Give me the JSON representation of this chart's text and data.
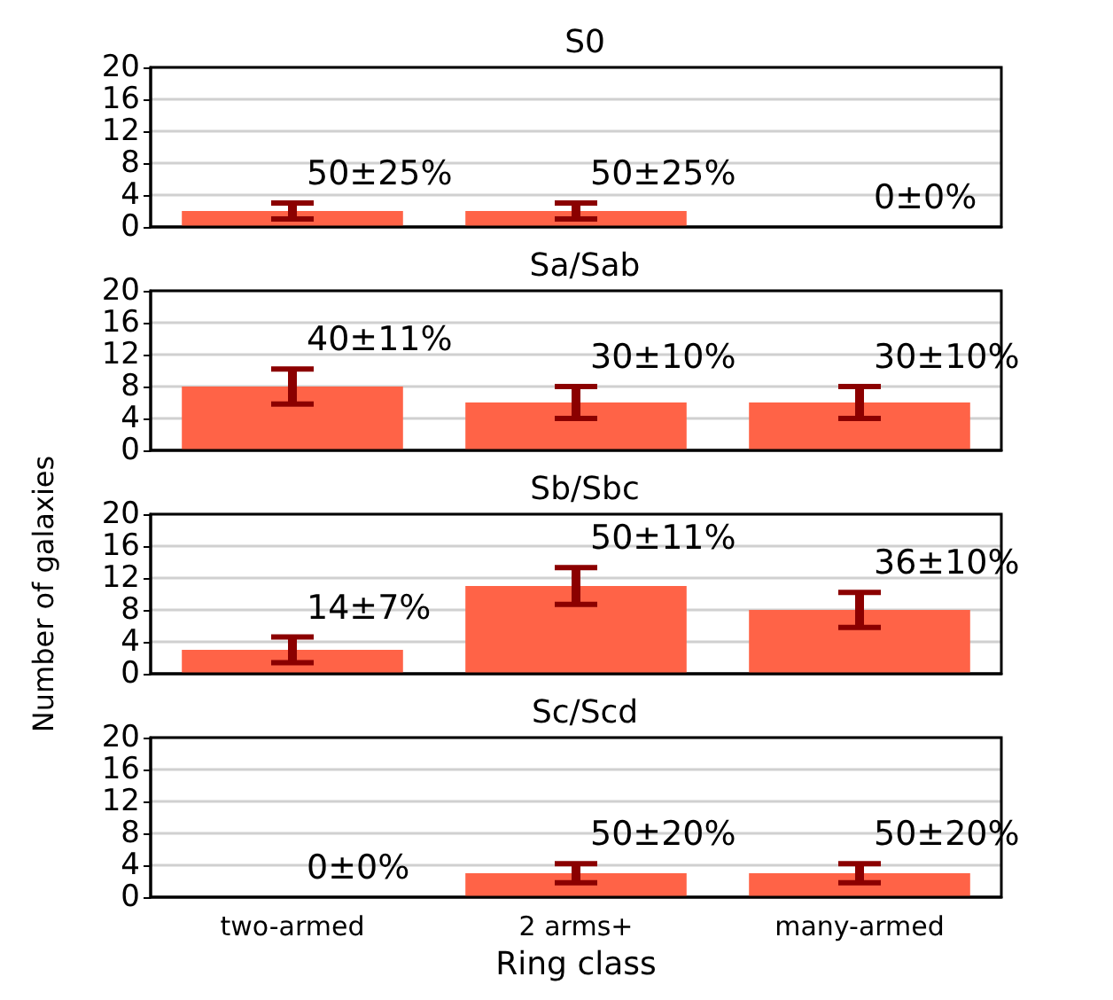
{
  "chart_data": [
    {
      "type": "bar",
      "title": "S0",
      "categories": [
        "two-armed",
        "2 arms+",
        "many-armed"
      ],
      "values": [
        2,
        2,
        0
      ],
      "errors": [
        1,
        1,
        0
      ],
      "color": "#ff6347",
      "ylim": [
        0,
        20
      ],
      "yticks": [
        0,
        4,
        8,
        12,
        16,
        20
      ],
      "grid": "y",
      "tick_labels": "y",
      "annotations": [
        {
          "text": "50±25%",
          "x": "two-armed",
          "y": 2
        },
        {
          "text": "50±25%",
          "x": "2 arms+",
          "y": 2
        },
        {
          "text": "0±0%",
          "x": "many-armed",
          "y": 0
        }
      ]
    },
    {
      "type": "bar",
      "title": "Sa/Sab",
      "categories": [
        "two-armed",
        "2 arms+",
        "many-armed"
      ],
      "values": [
        8,
        6,
        6
      ],
      "errors": [
        2.2,
        2,
        2
      ],
      "color": "#ff6347",
      "ylim": [
        0,
        20
      ],
      "yticks": [
        0,
        4,
        8,
        12,
        16,
        20
      ],
      "grid": "y",
      "tick_labels": "y",
      "annotations": [
        {
          "text": "40±11%",
          "x": "two-armed",
          "y": 8
        },
        {
          "text": "30±10%",
          "x": "2 arms+",
          "y": 6
        },
        {
          "text": "30±10%",
          "x": "many-armed",
          "y": 6
        }
      ]
    },
    {
      "type": "bar",
      "title": "Sb/Sbc",
      "ylabel": "Number of galaxies",
      "categories": [
        "two-armed",
        "2 arms+",
        "many-armed"
      ],
      "values": [
        3,
        11,
        8
      ],
      "errors": [
        1.6,
        2.3,
        2.2
      ],
      "color": "#ff6347",
      "ylim": [
        0,
        20
      ],
      "yticks": [
        0,
        4,
        8,
        12,
        16,
        20
      ],
      "grid": "y",
      "tick_labels": "y",
      "annotations": [
        {
          "text": "14±7%",
          "x": "two-armed",
          "y": 3
        },
        {
          "text": "50±11%",
          "x": "2 arms+",
          "y": 11
        },
        {
          "text": "36±10%",
          "x": "many-armed",
          "y": 8
        }
      ]
    },
    {
      "type": "bar",
      "title": "Sc/Scd",
      "xlabel": "Ring class",
      "categories": [
        "two-armed",
        "2 arms+",
        "many-armed"
      ],
      "values": [
        0,
        3,
        3
      ],
      "errors": [
        0,
        1.2,
        1.2
      ],
      "color": "#ff6347",
      "ylim": [
        0,
        20
      ],
      "yticks": [
        0,
        4,
        8,
        12,
        16,
        20
      ],
      "grid": "y",
      "annotations": [
        {
          "text": "0±0%",
          "x": "two-armed",
          "y": 0
        },
        {
          "text": "50±20%",
          "x": "2 arms+",
          "y": 3
        },
        {
          "text": "50±20%",
          "x": "many-armed",
          "y": 3
        }
      ]
    }
  ]
}
